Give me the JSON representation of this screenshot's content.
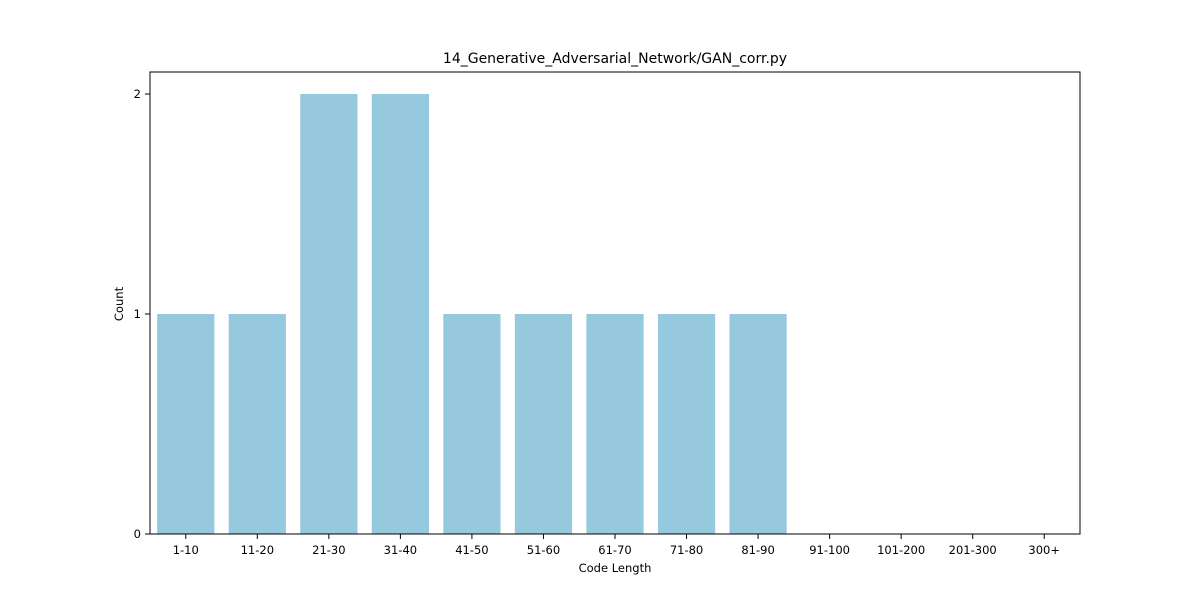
{
  "chart_data": {
    "type": "bar",
    "title": "14_Generative_Adversarial_Network/GAN_corr.py",
    "xlabel": "Code Length",
    "ylabel": "Count",
    "categories": [
      "1-10",
      "11-20",
      "21-30",
      "31-40",
      "41-50",
      "51-60",
      "61-70",
      "71-80",
      "81-90",
      "91-100",
      "101-200",
      "201-300",
      "300+"
    ],
    "values": [
      1,
      1,
      2,
      2,
      1,
      1,
      1,
      1,
      1,
      0,
      0,
      0,
      0
    ],
    "yticks": [
      "0",
      "1",
      "2"
    ],
    "ylim": [
      0,
      2.1
    ],
    "grid": false,
    "bar_color": "#96c9de"
  }
}
